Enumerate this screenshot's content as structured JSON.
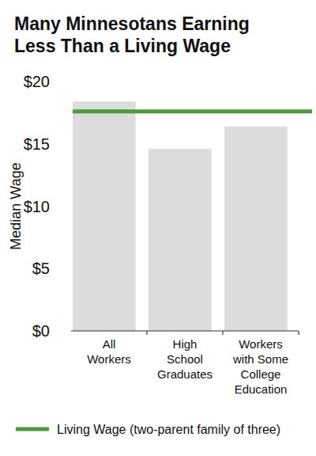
{
  "chart_data": {
    "type": "bar",
    "title": "Many Minnesotans Earning Less Than a Living Wage",
    "y_label": "Median Wage",
    "categories": [
      "All Workers",
      "High School Graduates",
      "Workers with Some College Education"
    ],
    "series": [
      {
        "type": "bar",
        "color": "#dcdcdc",
        "values": [
          18.4,
          14.6,
          16.4
        ]
      },
      {
        "type": "line",
        "name": "Living Wage (two-parent family of three)",
        "color": "#4c9b3e",
        "values": [
          17.6,
          17.6,
          17.6
        ]
      }
    ],
    "ylim": [
      0,
      20
    ],
    "yticks": [
      {
        "value": 0,
        "label": "$0"
      },
      {
        "value": 5,
        "label": "$5"
      },
      {
        "value": 10,
        "label": "$10"
      },
      {
        "value": 15,
        "label": "$15"
      },
      {
        "value": 20,
        "label": "$20"
      }
    ],
    "grid": false,
    "legend": "bottom"
  }
}
